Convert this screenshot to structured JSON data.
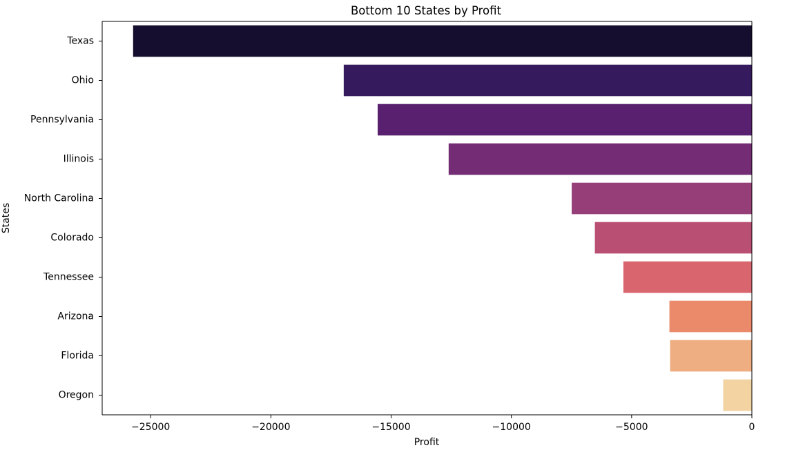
{
  "chart_data": {
    "type": "bar",
    "orientation": "horizontal",
    "title": "Bottom 10 States by Profit",
    "xlabel": "Profit",
    "ylabel": "States",
    "categories": [
      "Texas",
      "Ohio",
      "Pennsylvania",
      "Illinois",
      "North Carolina",
      "Colorado",
      "Tennessee",
      "Arizona",
      "Florida",
      "Oregon"
    ],
    "values": [
      -25729,
      -16971,
      -15560,
      -12608,
      -7491,
      -6528,
      -5342,
      -3428,
      -3399,
      -1191
    ],
    "xlim": [
      -27015,
      0
    ],
    "xticks": [
      -25000,
      -20000,
      -15000,
      -10000,
      -5000,
      0
    ],
    "xtick_labels": [
      "−25000",
      "−20000",
      "−15000",
      "−10000",
      "−5000",
      "0"
    ],
    "colors": [
      "#150e2e",
      "#351b5e",
      "#58206f",
      "#742d75",
      "#963e78",
      "#ba4f74",
      "#d9666e",
      "#ea8a6b",
      "#eeae82",
      "#f2d3a1"
    ],
    "grid": false,
    "legend": "none"
  }
}
